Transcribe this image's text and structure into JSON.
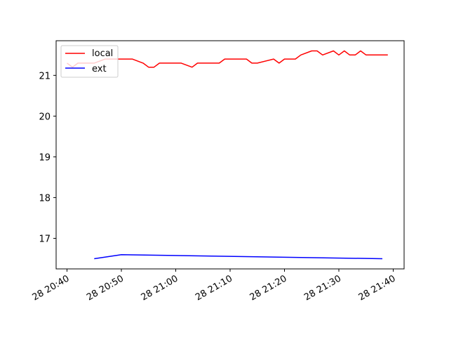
{
  "chart_data": {
    "type": "line",
    "title": "",
    "xlabel": "",
    "ylabel": "",
    "xlim": [
      "28 20:38",
      "28 21:42"
    ],
    "ylim": [
      16.25,
      21.85
    ],
    "grid": false,
    "legend_position": "top-left",
    "x_ticks": [
      "28 20:40",
      "28 20:50",
      "28 21:00",
      "28 21:10",
      "28 21:20",
      "28 21:30",
      "28 21:40"
    ],
    "y_ticks": [
      17,
      18,
      19,
      20,
      21
    ],
    "series": [
      {
        "name": "local",
        "color": "#ff0000",
        "points": [
          [
            "28 20:40",
            21.3
          ],
          [
            "28 20:41",
            21.2
          ],
          [
            "28 20:42",
            21.3
          ],
          [
            "28 20:45",
            21.3
          ],
          [
            "28 20:47",
            21.4
          ],
          [
            "28 20:50",
            21.4
          ],
          [
            "28 20:52",
            21.4
          ],
          [
            "28 20:54",
            21.3
          ],
          [
            "28 20:55",
            21.2
          ],
          [
            "28 20:56",
            21.2
          ],
          [
            "28 20:57",
            21.3
          ],
          [
            "28 21:01",
            21.3
          ],
          [
            "28 21:03",
            21.2
          ],
          [
            "28 21:04",
            21.3
          ],
          [
            "28 21:08",
            21.3
          ],
          [
            "28 21:09",
            21.4
          ],
          [
            "28 21:13",
            21.4
          ],
          [
            "28 21:14",
            21.3
          ],
          [
            "28 21:15",
            21.3
          ],
          [
            "28 21:18",
            21.4
          ],
          [
            "28 21:19",
            21.3
          ],
          [
            "28 21:20",
            21.4
          ],
          [
            "28 21:22",
            21.4
          ],
          [
            "28 21:23",
            21.5
          ],
          [
            "28 21:25",
            21.6
          ],
          [
            "28 21:26",
            21.6
          ],
          [
            "28 21:27",
            21.5
          ],
          [
            "28 21:29",
            21.6
          ],
          [
            "28 21:30",
            21.5
          ],
          [
            "28 21:31",
            21.6
          ],
          [
            "28 21:32",
            21.5
          ],
          [
            "28 21:33",
            21.5
          ],
          [
            "28 21:34",
            21.6
          ],
          [
            "28 21:35",
            21.5
          ],
          [
            "28 21:39",
            21.5
          ]
        ]
      },
      {
        "name": "ext",
        "color": "#0000ff",
        "points": [
          [
            "28 20:45",
            16.5
          ],
          [
            "28 20:50",
            16.6
          ],
          [
            "28 21:38",
            16.5
          ]
        ]
      }
    ]
  }
}
